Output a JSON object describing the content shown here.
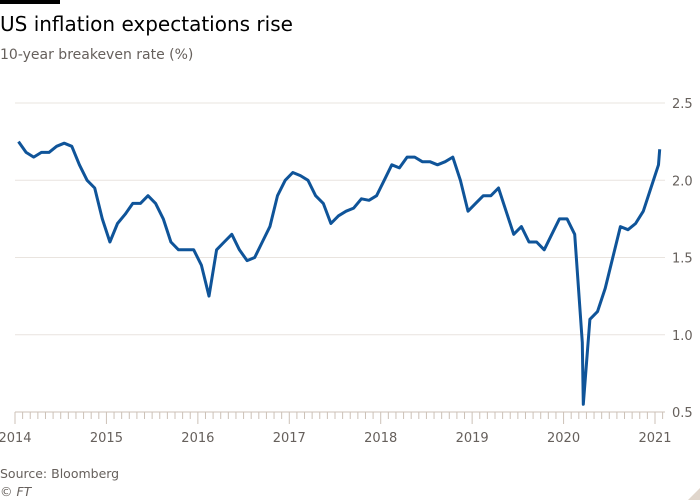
{
  "chart_data": {
    "type": "line",
    "title": "US inflation expectations rise",
    "subtitle": "10-year breakeven rate (%)",
    "xlabel": "",
    "ylabel": "",
    "ylim": [
      0.5,
      2.5
    ],
    "yticks": [
      "0.5",
      "1.0",
      "1.5",
      "2.0",
      "2.5"
    ],
    "xticks": [
      "2014",
      "2015",
      "2016",
      "2017",
      "2018",
      "2019",
      "2020",
      "2021"
    ],
    "grid": true,
    "line_color": "#0f5499",
    "series": [
      {
        "x": [
          "2014-01",
          "2014-02",
          "2014-03",
          "2014-04",
          "2014-05",
          "2014-06",
          "2014-07",
          "2014-08",
          "2014-09",
          "2014-10",
          "2014-11",
          "2014-12",
          "2015-01",
          "2015-02",
          "2015-03",
          "2015-04",
          "2015-05",
          "2015-06",
          "2015-07",
          "2015-08",
          "2015-09",
          "2015-10",
          "2015-11",
          "2015-12",
          "2016-01",
          "2016-02",
          "2016-03",
          "2016-04",
          "2016-05",
          "2016-06",
          "2016-07",
          "2016-08",
          "2016-09",
          "2016-10",
          "2016-11",
          "2016-12",
          "2017-01",
          "2017-02",
          "2017-03",
          "2017-04",
          "2017-05",
          "2017-06",
          "2017-07",
          "2017-08",
          "2017-09",
          "2017-10",
          "2017-11",
          "2017-12",
          "2018-01",
          "2018-02",
          "2018-03",
          "2018-04",
          "2018-05",
          "2018-06",
          "2018-07",
          "2018-08",
          "2018-09",
          "2018-10",
          "2018-11",
          "2018-12",
          "2019-01",
          "2019-02",
          "2019-03",
          "2019-04",
          "2019-05",
          "2019-06",
          "2019-07",
          "2019-08",
          "2019-09",
          "2019-10",
          "2019-11",
          "2019-12",
          "2020-01",
          "2020-02",
          "2020-03",
          "2020-03-19",
          "2020-04",
          "2020-05",
          "2020-06",
          "2020-07",
          "2020-08",
          "2020-09",
          "2020-10",
          "2020-11",
          "2020-12",
          "2021-01",
          "2021-01-20"
        ],
        "values": [
          2.25,
          2.18,
          2.15,
          2.18,
          2.18,
          2.22,
          2.24,
          2.22,
          2.1,
          2.0,
          1.95,
          1.75,
          1.6,
          1.72,
          1.78,
          1.85,
          1.85,
          1.9,
          1.85,
          1.75,
          1.6,
          1.55,
          1.55,
          1.55,
          1.45,
          1.25,
          1.55,
          1.6,
          1.65,
          1.55,
          1.48,
          1.5,
          1.6,
          1.7,
          1.9,
          2.0,
          2.05,
          2.03,
          2.0,
          1.9,
          1.85,
          1.72,
          1.77,
          1.8,
          1.82,
          1.88,
          1.87,
          1.9,
          2.0,
          2.1,
          2.08,
          2.15,
          2.15,
          2.12,
          2.12,
          2.1,
          2.12,
          2.15,
          2.0,
          1.8,
          1.85,
          1.9,
          1.9,
          1.95,
          1.8,
          1.65,
          1.7,
          1.6,
          1.6,
          1.55,
          1.65,
          1.75,
          1.75,
          1.65,
          0.95,
          0.55,
          1.1,
          1.15,
          1.3,
          1.5,
          1.7,
          1.68,
          1.72,
          1.8,
          1.95,
          2.1,
          2.2
        ]
      }
    ]
  },
  "footer": {
    "source": "Source: Bloomberg",
    "copyright": "© FT"
  }
}
